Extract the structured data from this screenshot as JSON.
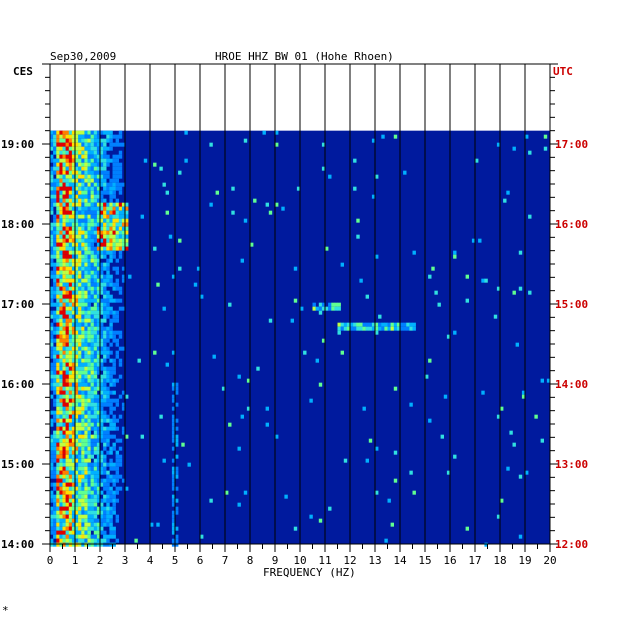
{
  "header": {
    "date": "Sep30,2009",
    "station": "HROE HHZ BW 01 (Hohe Rhoen)",
    "left_zone": "CES",
    "right_zone": "UTC"
  },
  "footer_mark": "*",
  "colors": {
    "background_blue": "#001a9e",
    "axis_black": "#000000",
    "utc_red": "#cc0000"
  },
  "chart_data": {
    "type": "heatmap",
    "title": "HROE HHZ BW 01 (Hohe Rhoen)",
    "xlabel": "FREQUENCY (HZ)",
    "xlim": [
      0,
      20
    ],
    "x_ticks": [
      "0",
      "1",
      "2",
      "3",
      "4",
      "5",
      "6",
      "7",
      "8",
      "9",
      "10",
      "11",
      "12",
      "13",
      "14",
      "15",
      "16",
      "17",
      "18",
      "19",
      "20"
    ],
    "y_left_ticks": [
      "19:00",
      "18:00",
      "17:00",
      "16:00",
      "15:00",
      "14:00"
    ],
    "y_right_ticks": [
      "17:00",
      "16:00",
      "15:00",
      "14:00",
      "13:00",
      "12:00"
    ],
    "y_left_zone": "CES",
    "y_right_zone": "UTC",
    "time_range_local": [
      "14:00",
      "19:00"
    ],
    "data_start_local": "19:10",
    "high_energy_band_hz": [
      0,
      3
    ],
    "notes_bands": [
      {
        "freq_hz": [
          1.8,
          3.0
        ],
        "time_local": [
          "17:45",
          "18:15"
        ],
        "level": "high"
      },
      {
        "freq_hz": [
          10.5,
          11.5
        ],
        "time_local": [
          "17:00",
          "17:00"
        ],
        "level": "medium"
      },
      {
        "freq_hz": [
          11.5,
          14.5
        ],
        "time_local": [
          "16:45",
          "16:45"
        ],
        "level": "medium"
      },
      {
        "freq_hz": [
          4.8,
          5.0
        ],
        "time_local": [
          "14:00",
          "16:00"
        ],
        "level": "low"
      }
    ]
  }
}
